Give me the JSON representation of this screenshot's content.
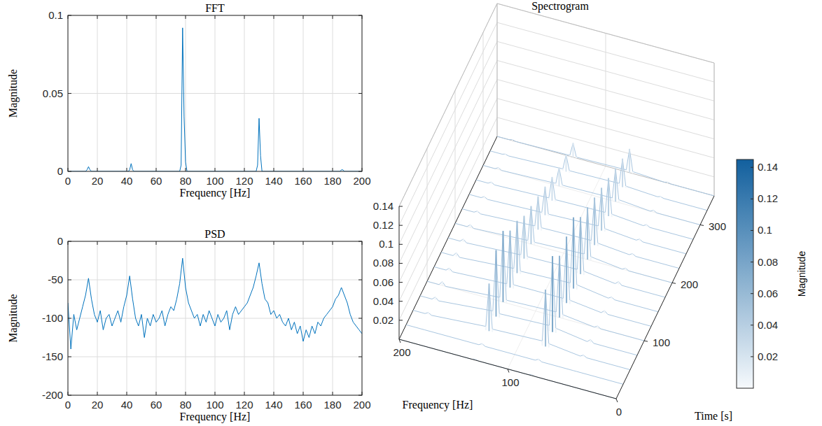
{
  "chart_data": [
    {
      "type": "line",
      "title": "FFT",
      "x_label": "Frequency [Hz]",
      "y_label": "Magnitude",
      "color": "#0072bd",
      "grid": true,
      "xlim": [
        0,
        200
      ],
      "xticks": [
        0,
        20,
        40,
        60,
        80,
        100,
        120,
        140,
        160,
        180,
        200
      ],
      "ylim": [
        0,
        0.1
      ],
      "yticks": [
        0,
        0.05,
        0.1
      ],
      "x": [
        0,
        12,
        13,
        14,
        15,
        16,
        41,
        42,
        43,
        44,
        45,
        76,
        77,
        78,
        79,
        80,
        81,
        128,
        129,
        130,
        131,
        132,
        185,
        186,
        187,
        188,
        200
      ],
      "values": [
        0,
        0,
        0.001,
        0.003,
        0.001,
        0,
        0,
        0.001,
        0.005,
        0.001,
        0,
        0,
        0.004,
        0.092,
        0.035,
        0.006,
        0,
        0,
        0.004,
        0.034,
        0.01,
        0,
        0,
        0.001,
        0.001,
        0,
        0
      ]
    },
    {
      "type": "line",
      "title": "PSD",
      "x_label": "Frequency [Hz]",
      "y_label": "Magnitude",
      "color": "#0072bd",
      "grid": true,
      "xlim": [
        0,
        200
      ],
      "xticks": [
        0,
        20,
        40,
        60,
        80,
        100,
        120,
        140,
        160,
        180,
        200
      ],
      "ylim": [
        -200,
        0
      ],
      "yticks": [
        -200,
        -150,
        -100,
        -50,
        0
      ],
      "x": [
        0,
        2,
        4,
        6,
        8,
        10,
        12,
        14,
        16,
        18,
        20,
        22,
        24,
        26,
        28,
        30,
        32,
        34,
        36,
        38,
        40,
        42,
        44,
        46,
        48,
        50,
        52,
        54,
        56,
        58,
        60,
        62,
        64,
        66,
        68,
        70,
        72,
        74,
        76,
        78,
        80,
        82,
        84,
        86,
        88,
        90,
        92,
        94,
        96,
        98,
        100,
        102,
        104,
        106,
        108,
        110,
        112,
        114,
        116,
        118,
        120,
        122,
        124,
        126,
        128,
        130,
        132,
        134,
        136,
        138,
        140,
        142,
        144,
        146,
        148,
        150,
        152,
        154,
        156,
        158,
        160,
        162,
        164,
        166,
        168,
        170,
        172,
        174,
        176,
        178,
        180,
        182,
        184,
        186,
        188,
        190,
        192,
        194,
        196,
        198,
        200
      ],
      "values": [
        -80,
        -140,
        -95,
        -115,
        -100,
        -85,
        -70,
        -48,
        -75,
        -95,
        -105,
        -90,
        -115,
        -100,
        -95,
        -110,
        -100,
        -90,
        -105,
        -85,
        -70,
        -45,
        -75,
        -100,
        -110,
        -95,
        -125,
        -100,
        -110,
        -95,
        -105,
        -100,
        -90,
        -110,
        -95,
        -85,
        -90,
        -75,
        -55,
        -22,
        -60,
        -80,
        -90,
        -100,
        -95,
        -110,
        -95,
        -105,
        -90,
        -100,
        -110,
        -95,
        -105,
        -100,
        -90,
        -115,
        -95,
        -85,
        -95,
        -90,
        -85,
        -80,
        -70,
        -60,
        -45,
        -28,
        -55,
        -75,
        -80,
        -95,
        -90,
        -100,
        -95,
        -105,
        -110,
        -100,
        -115,
        -105,
        -120,
        -110,
        -130,
        -115,
        -125,
        -110,
        -120,
        -105,
        -110,
        -100,
        -95,
        -90,
        -85,
        -75,
        -70,
        -60,
        -70,
        -80,
        -95,
        -105,
        -110,
        -115,
        -120
      ]
    },
    {
      "type": "surface",
      "title": "Spectrogram",
      "x_label": "Frequency [Hz]",
      "y_label": "Time [s]",
      "grid": true,
      "xlim": [
        0,
        200
      ],
      "xticks": [
        0,
        100,
        200
      ],
      "ylim": [
        0,
        350
      ],
      "yticks": [
        100,
        200,
        300
      ],
      "zlim": [
        0,
        0.14
      ],
      "zticks": [
        0.02,
        0.04,
        0.06,
        0.08,
        0.1,
        0.12,
        0.14
      ],
      "x": [
        0,
        40,
        43,
        46,
        75,
        78,
        81,
        127,
        130,
        133,
        183,
        186,
        189,
        200
      ],
      "y": [
        0,
        25,
        50,
        75,
        100,
        125,
        150,
        175,
        200,
        225,
        250,
        275,
        300,
        325,
        350
      ],
      "magnitude": [
        [
          0,
          0,
          0,
          0,
          0,
          0.001,
          0,
          0,
          0.001,
          0,
          0,
          0,
          0,
          0
        ],
        [
          0,
          0,
          0,
          0,
          0,
          0.002,
          0,
          0,
          0.002,
          0,
          0,
          0,
          0,
          0
        ],
        [
          0,
          0,
          0.002,
          0,
          0.004,
          0.06,
          0.005,
          0.003,
          0.05,
          0.004,
          0,
          0.002,
          0,
          0
        ],
        [
          0,
          0,
          0.003,
          0,
          0.005,
          0.08,
          0.006,
          0.004,
          0.07,
          0.005,
          0,
          0.003,
          0,
          0
        ],
        [
          0,
          0,
          0.002,
          0,
          0.004,
          0.065,
          0.005,
          0.003,
          0.075,
          0.004,
          0,
          0.004,
          0,
          0
        ],
        [
          0,
          0,
          0.003,
          0,
          0.004,
          0.07,
          0.004,
          0.004,
          0.06,
          0.003,
          0,
          0.003,
          0,
          0
        ],
        [
          0,
          0,
          0.002,
          0,
          0.005,
          0.075,
          0.005,
          0.003,
          0.055,
          0.004,
          0,
          0.004,
          0,
          0
        ],
        [
          0,
          0,
          0.003,
          0,
          0.004,
          0.06,
          0.004,
          0.003,
          0.045,
          0.003,
          0,
          0.003,
          0,
          0
        ],
        [
          0,
          0,
          0.002,
          0,
          0.004,
          0.055,
          0.005,
          0.003,
          0.04,
          0.003,
          0,
          0.003,
          0,
          0
        ],
        [
          0,
          0,
          0.002,
          0,
          0.003,
          0.05,
          0.004,
          0.003,
          0.035,
          0.003,
          0,
          0.002,
          0,
          0
        ],
        [
          0,
          0,
          0.002,
          0,
          0.003,
          0.045,
          0.004,
          0.002,
          0.03,
          0.002,
          0,
          0.002,
          0,
          0
        ],
        [
          0,
          0,
          0.002,
          0,
          0.003,
          0.04,
          0.003,
          0.002,
          0.025,
          0.002,
          0,
          0.002,
          0,
          0
        ],
        [
          0,
          0,
          0.002,
          0,
          0.003,
          0.035,
          0.003,
          0.002,
          0.02,
          0.002,
          0,
          0.002,
          0,
          0
        ],
        [
          0,
          0,
          0.001,
          0,
          0.002,
          0.03,
          0.003,
          0.002,
          0.018,
          0.002,
          0,
          0.001,
          0,
          0
        ],
        [
          0,
          0,
          0.001,
          0,
          0.002,
          0.025,
          0.002,
          0.001,
          0.015,
          0.001,
          0,
          0.001,
          0,
          0
        ]
      ],
      "colorbar": {
        "label": "Magnitude",
        "range": [
          0,
          0.145
        ],
        "ticks": [
          0.02,
          0.04,
          0.06,
          0.08,
          0.1,
          0.12,
          0.14
        ]
      }
    }
  ]
}
